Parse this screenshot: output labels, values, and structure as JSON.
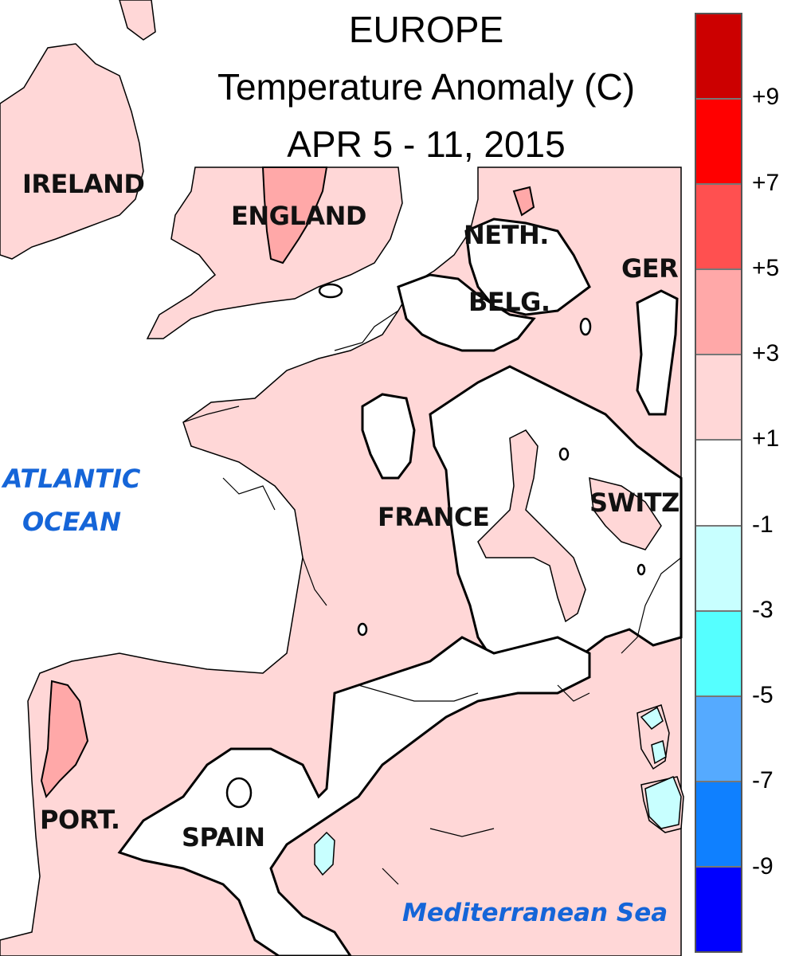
{
  "title": {
    "line1": "EUROPE",
    "line2": "Temperature Anomaly (C)",
    "line3": "APR 5 - 11, 2015"
  },
  "labels": {
    "ireland": "IRELAND",
    "england": "ENGLAND",
    "neth": "NETH.",
    "belg": "BELG.",
    "ger": "GER",
    "switz": "SWITZ",
    "france": "FRANCE",
    "port": "PORT.",
    "spain": "SPAIN",
    "atlantic_line1": "ATLANTIC",
    "atlantic_line2": "OCEAN",
    "med": "Mediterranean Sea"
  },
  "legend": {
    "ticks": [
      "+9",
      "+7",
      "+5",
      "+3",
      "+1",
      "-1",
      "-3",
      "-5",
      "-7",
      "-9"
    ],
    "colors": [
      "#cc0000",
      "#ff0000",
      "#ff5050",
      "#ffa8a8",
      "#ffd7d7",
      "#ffffff",
      "#c8ffff",
      "#55ffff",
      "#55aaff",
      "#0f80ff",
      "#0000ff"
    ]
  },
  "colors": {
    "anomaly_1_3": "#ffd7d7",
    "anomaly_3_5": "#ffa8a8",
    "anomaly_neg_1_3": "#c8ffff",
    "label_blue": "#1565d8"
  }
}
